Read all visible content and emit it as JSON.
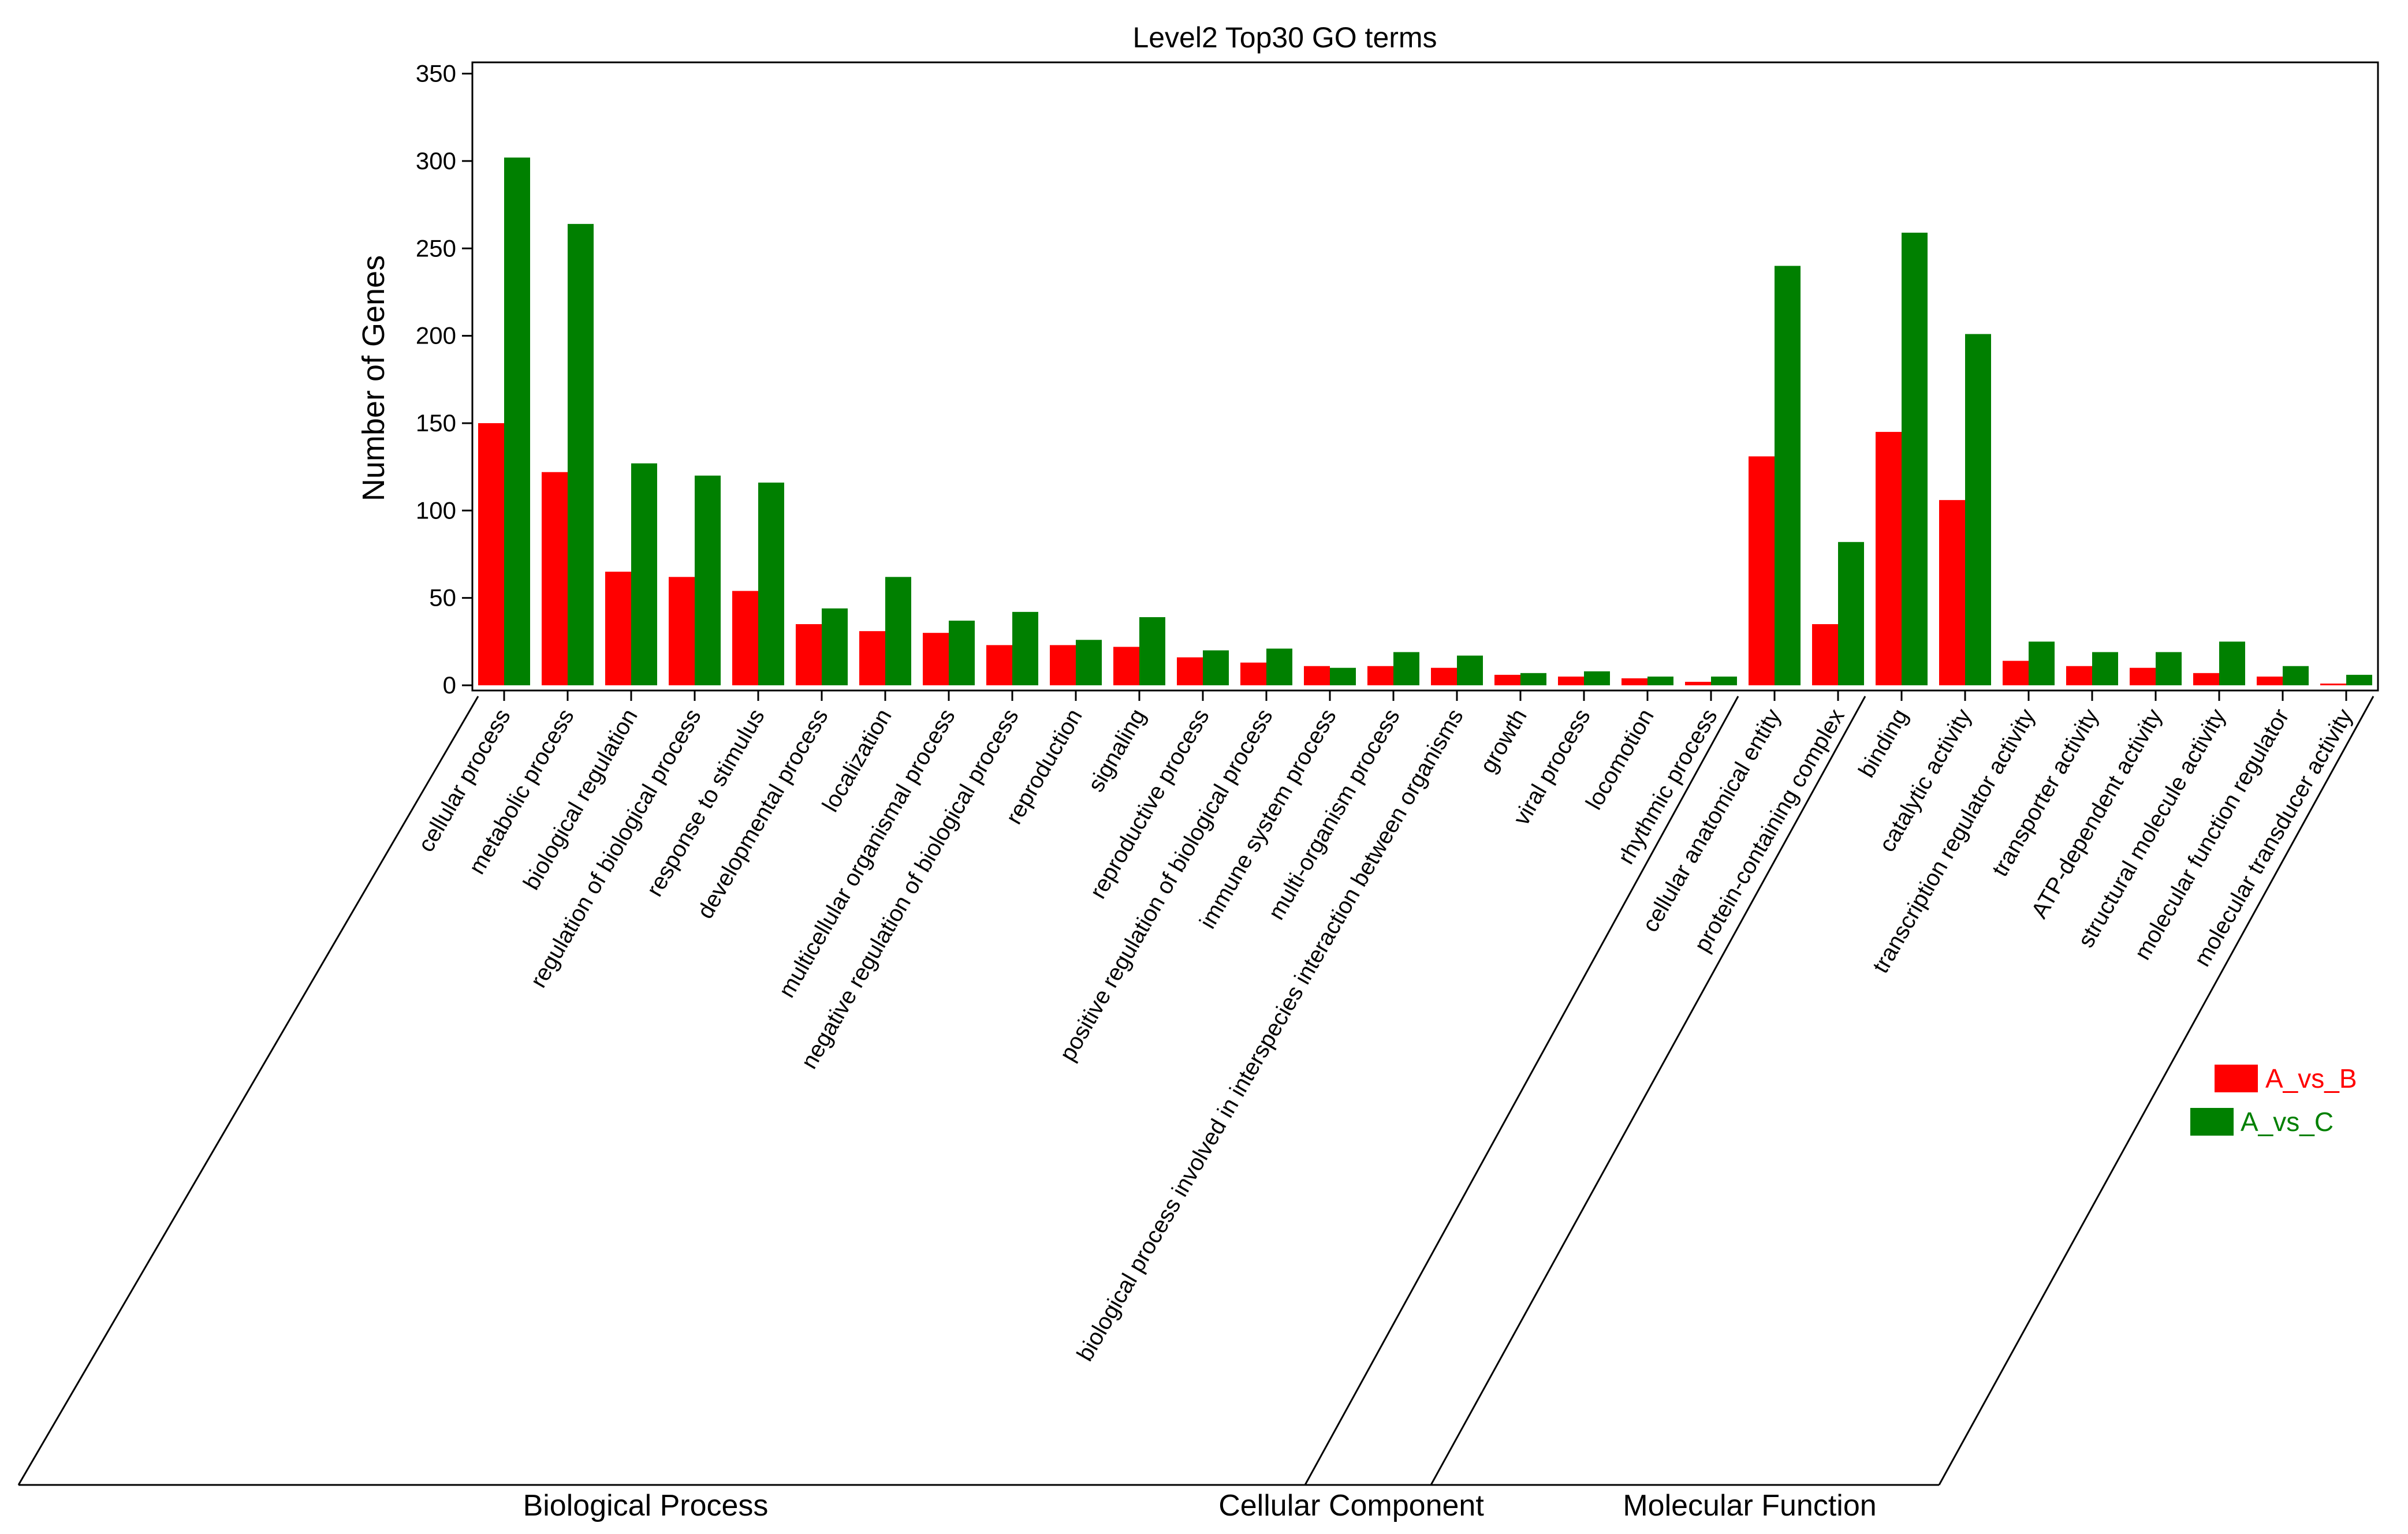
{
  "chart_data": {
    "type": "bar",
    "title": "Level2 Top30 GO terms",
    "xlabel": "",
    "ylabel": "Number of Genes",
    "ylim": [
      0,
      360
    ],
    "yticks": [
      0,
      50,
      100,
      150,
      200,
      250,
      300,
      350
    ],
    "categories": [
      "cellular process",
      "metabolic process",
      "biological regulation",
      "regulation of biological process",
      "response to stimulus",
      "developmental process",
      "localization",
      "multicellular organismal process",
      "negative regulation of biological process",
      "reproduction",
      "signaling",
      "reproductive process",
      "positive regulation of biological process",
      "immune system process",
      "multi-organism process",
      "biological process involved in interspecies interaction between organisms",
      "growth",
      "viral process",
      "locomotion",
      "rhythmic process",
      "cellular anatomical entity",
      "protein-containing complex",
      "binding",
      "catalytic activity",
      "transcription regulator activity",
      "transporter activity",
      "ATP-dependent activity",
      "structural molecule activity",
      "molecular function regulator",
      "molecular transducer activity"
    ],
    "series": [
      {
        "name": "A_vs_B",
        "color": "#ff0000",
        "values": [
          150,
          122,
          65,
          62,
          54,
          35,
          31,
          30,
          23,
          23,
          22,
          16,
          13,
          11,
          11,
          10,
          6,
          5,
          4,
          2,
          131,
          35,
          145,
          106,
          14,
          11,
          10,
          7,
          5,
          1
        ]
      },
      {
        "name": "A_vs_C",
        "color": "#008000",
        "values": [
          302,
          264,
          127,
          120,
          116,
          44,
          62,
          37,
          42,
          26,
          39,
          20,
          21,
          10,
          19,
          17,
          7,
          8,
          5,
          5,
          240,
          82,
          259,
          201,
          25,
          19,
          19,
          25,
          11,
          6
        ]
      }
    ],
    "groups": [
      {
        "name": "Biological Process",
        "start": 0,
        "end": 19
      },
      {
        "name": "Cellular Component",
        "start": 20,
        "end": 21
      },
      {
        "name": "Molecular Function",
        "start": 22,
        "end": 29
      }
    ],
    "legend_position": "right"
  }
}
